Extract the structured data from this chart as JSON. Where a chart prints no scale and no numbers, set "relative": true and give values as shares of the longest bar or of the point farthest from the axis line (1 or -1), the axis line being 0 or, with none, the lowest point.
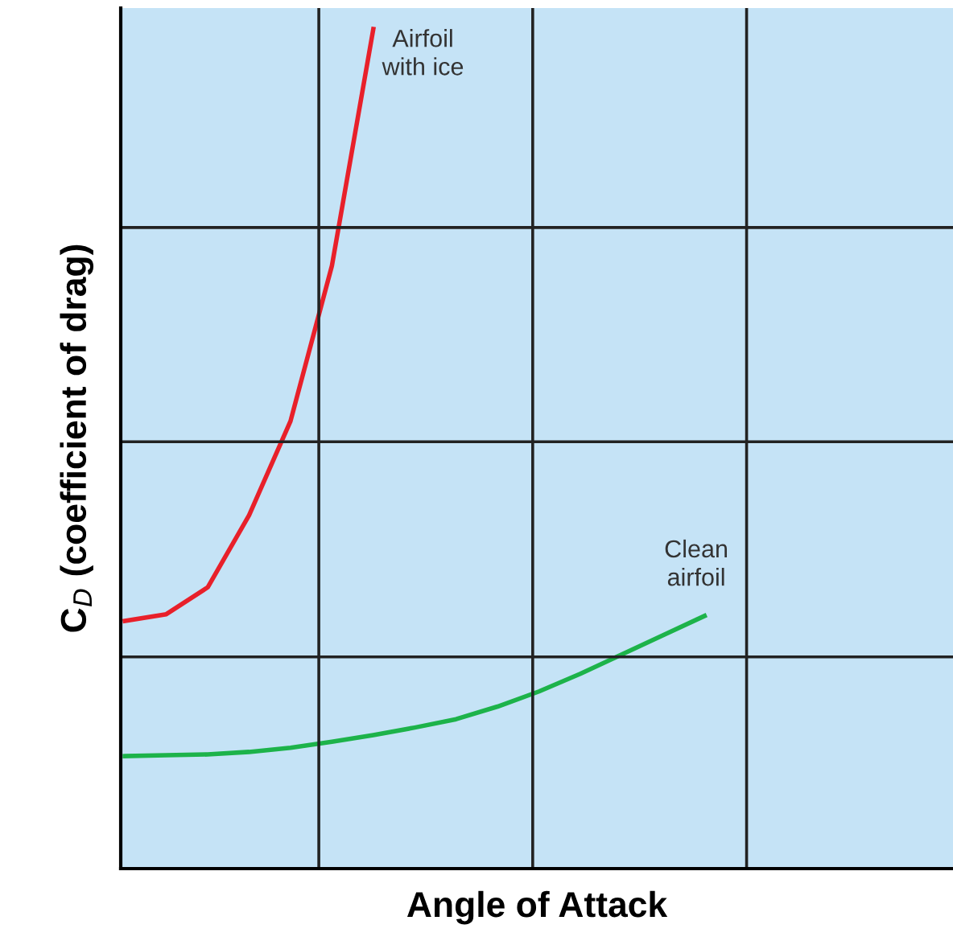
{
  "chart_data": {
    "type": "line",
    "relative": true,
    "xlabel": "Angle of Attack",
    "ylabel": "C$_{D}$ (coefficient of drag)",
    "categories": [
      null,
      null,
      null,
      null,
      null,
      null,
      null,
      null,
      null,
      null,
      null,
      null,
      null,
      null,
      null,
      null,
      null,
      null,
      null,
      null,
      null
    ],
    "series": [
      {
        "name": "Airfoil\nwith ice",
        "color": "#e8202a",
        "values": [
          0.295,
          0.303,
          0.335,
          0.421,
          0.533,
          0.718,
          1,
          null,
          null,
          null,
          null,
          null,
          null,
          null,
          null,
          null,
          null,
          null,
          null,
          null,
          null
        ]
      },
      {
        "name": "Clean\nairfoil",
        "color": "#1db34a",
        "values": [
          0.134,
          0.135,
          0.136,
          0.139,
          0.144,
          0.151,
          0.159,
          0.168,
          0.178,
          0.193,
          0.211,
          0.232,
          0.255,
          0.278,
          0.301,
          null,
          null,
          null,
          null,
          null,
          null
        ]
      }
    ],
    "grid": true,
    "line_style": "solid",
    "marker": "none"
  }
}
